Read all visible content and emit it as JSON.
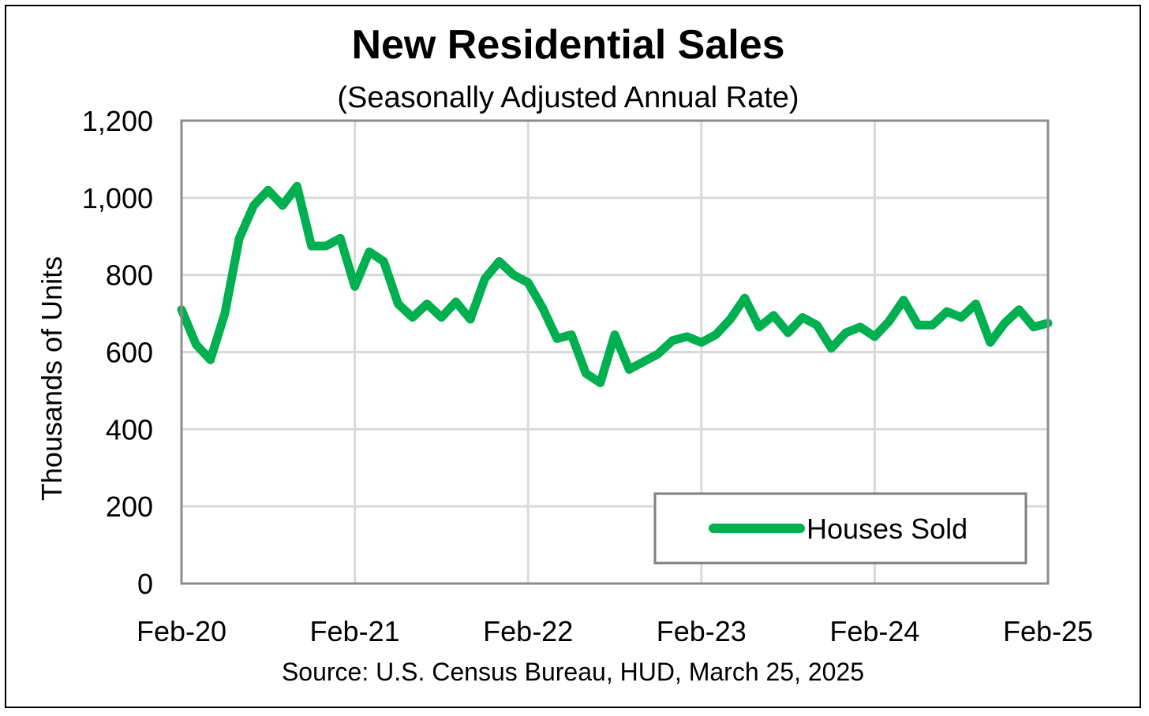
{
  "chart_data": {
    "type": "line",
    "title": "New Residential Sales",
    "subtitle": "(Seasonally Adjusted Annual Rate)",
    "ylabel": "Thousands of Units",
    "xlabel": "",
    "source": "Source:  U.S. Census Bureau, HUD, March 25, 2025",
    "ylim": [
      0,
      1200
    ],
    "yticks": [
      0,
      200,
      400,
      600,
      800,
      1000,
      1200
    ],
    "ytick_labels": [
      "0",
      "200",
      "400",
      "600",
      "800",
      "1,000",
      "1,200"
    ],
    "x_start": "Feb-20",
    "x_end": "Feb-25",
    "xtick_labels": [
      "Feb-20",
      "Feb-21",
      "Feb-22",
      "Feb-23",
      "Feb-24",
      "Feb-25"
    ],
    "grid": true,
    "legend_position": "bottom-right",
    "series": [
      {
        "name": "Houses Sold",
        "color": "#00b050",
        "values": [
          710,
          620,
          580,
          700,
          895,
          980,
          1020,
          980,
          1030,
          875,
          875,
          895,
          770,
          860,
          835,
          725,
          690,
          725,
          690,
          730,
          685,
          790,
          835,
          800,
          780,
          715,
          635,
          645,
          545,
          520,
          645,
          555,
          575,
          595,
          630,
          640,
          625,
          645,
          685,
          740,
          665,
          695,
          650,
          690,
          670,
          610,
          650,
          665,
          640,
          680,
          735,
          670,
          670,
          705,
          690,
          725,
          625,
          675,
          710,
          665,
          675
        ]
      }
    ]
  }
}
